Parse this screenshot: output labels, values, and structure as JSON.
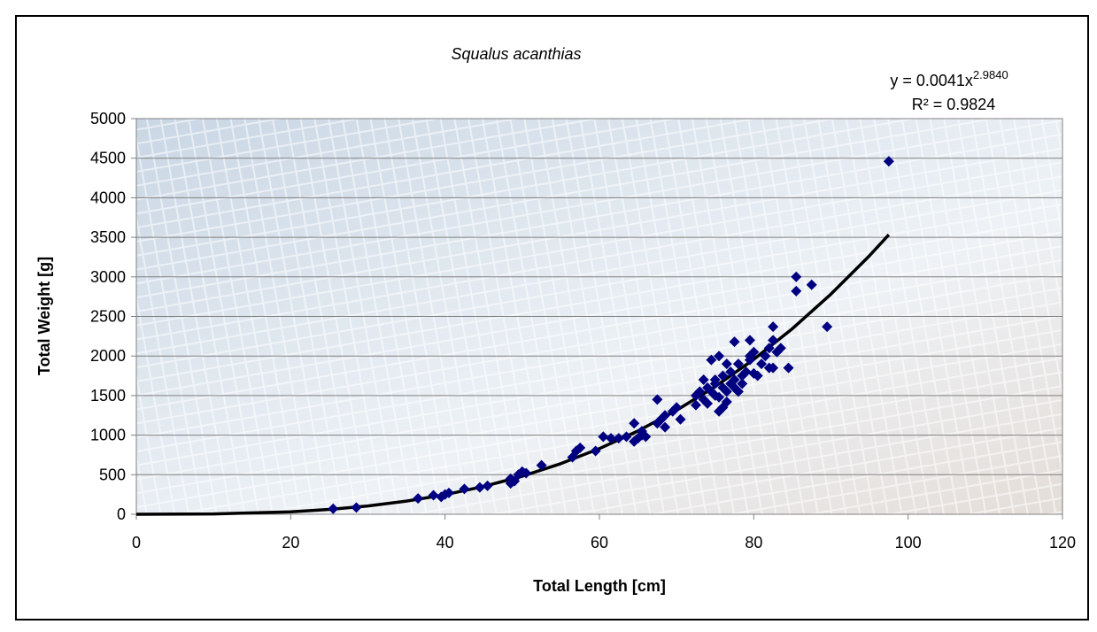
{
  "chart_data": {
    "type": "scatter",
    "title": "Squalus acanthias",
    "x_label": "Total Length [cm]",
    "y_label": "Total Weight [g]",
    "equation": "y = 0.0041x",
    "equation_exponent": "2.9840",
    "r_squared": "R² = 0.9824",
    "color": "#000080",
    "x": [
      25.5,
      28.5,
      36.5,
      38.5,
      39.5,
      40,
      40.5,
      42.5,
      44.5,
      45.5,
      48.5,
      48.5,
      49,
      49.5,
      50,
      50.5,
      52.5,
      56.5,
      57,
      57.5,
      59.5,
      60.5,
      61.5,
      62.5,
      63.5,
      64.5,
      64.5,
      65,
      65.5,
      65.5,
      66,
      67.5,
      67.5,
      68,
      68.5,
      68.5,
      69.5,
      70,
      70.5,
      72.5,
      72.5,
      73,
      73.5,
      73.5,
      74,
      74,
      74.5,
      74.5,
      75,
      75,
      75,
      75.5,
      75.5,
      75.5,
      76,
      76,
      76,
      76.5,
      76.5,
      76.5,
      77,
      77,
      77.5,
      77.5,
      77.5,
      78,
      78,
      78.5,
      78.5,
      79,
      79.5,
      79.5,
      79.5,
      80,
      80,
      80.5,
      81,
      81.5,
      82,
      82,
      82.5,
      82.5,
      82.5,
      83,
      83.5,
      84.5,
      85.5,
      85.5,
      87.5,
      89.5,
      97.5
    ],
    "values": [
      70,
      85,
      200,
      240,
      220,
      250,
      270,
      320,
      340,
      360,
      390,
      450,
      420,
      500,
      540,
      520,
      620,
      720,
      800,
      840,
      800,
      980,
      960,
      960,
      980,
      920,
      1150,
      960,
      1050,
      1000,
      980,
      1450,
      1150,
      1200,
      1250,
      1100,
      1300,
      1350,
      1200,
      1380,
      1500,
      1550,
      1450,
      1700,
      1400,
      1600,
      1550,
      1950,
      1500,
      1650,
      1700,
      1480,
      2000,
      1300,
      1600,
      1750,
      1350,
      1550,
      1900,
      1420,
      1650,
      1800,
      2180,
      1600,
      1700,
      1550,
      1900,
      1650,
      1750,
      1800,
      2000,
      2200,
      1950,
      1780,
      2050,
      1750,
      1900,
      2000,
      2100,
      1850,
      2200,
      2370,
      1850,
      2050,
      2100,
      1850,
      2820,
      3000,
      2900,
      2370,
      4460
    ],
    "trendline": {
      "color": "#000000",
      "x": [
        0,
        10,
        20,
        25,
        30,
        35,
        40,
        45,
        50,
        55,
        60,
        65,
        70,
        75,
        80,
        85,
        90,
        95,
        97.5
      ],
      "values": [
        0,
        4,
        31,
        61,
        105,
        166,
        247,
        352,
        481,
        640,
        830,
        1053,
        1314,
        1614,
        1957,
        2345,
        2782,
        3268,
        3532
      ]
    },
    "xlim": [
      0,
      120
    ],
    "xticks": [
      0,
      20,
      40,
      60,
      80,
      100,
      120
    ],
    "ylim": [
      0,
      5000
    ],
    "yticks": [
      0,
      500,
      1000,
      1500,
      2000,
      2500,
      3000,
      3500,
      4000,
      4500,
      5000
    ],
    "grid": true
  }
}
